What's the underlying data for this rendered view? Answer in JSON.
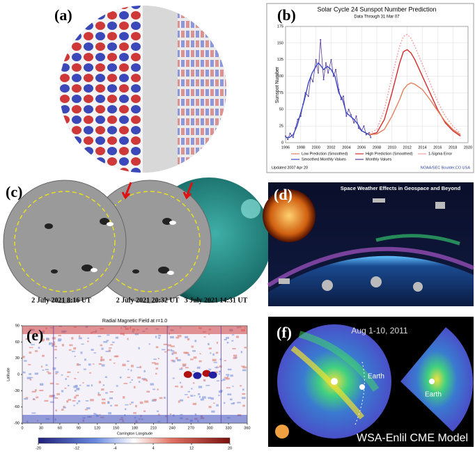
{
  "labels": [
    "(a)",
    "(b)",
    "(c)",
    "(d)",
    "(e)",
    "(f)"
  ],
  "panel_c": {
    "timestamps": [
      "2 July 2021 8:16 UT",
      "2 July 2021 20:32 UT",
      "3 July 2021 14:31 UT"
    ]
  },
  "panel_d": {
    "title": "Space Weather Effects in Geospace and Beyond"
  },
  "panel_f": {
    "title": "Aug 1-10, 2011",
    "footer": "WSA-Enlil CME Model",
    "earth_labels": [
      "Earth",
      "Earth"
    ]
  },
  "chart_data": [
    {
      "type": "line",
      "title": "Solar Cycle 24 Sunspot Number Prediction",
      "subtitle": "Data Through 31 Mar 07",
      "ylabel": "Sunspot Number",
      "xlim": [
        1996,
        2020
      ],
      "xticks": [
        1996,
        1998,
        2000,
        2002,
        2004,
        2006,
        2008,
        2010,
        2012,
        2014,
        2016,
        2018,
        2020
      ],
      "ylim": [
        0,
        175
      ],
      "yticks": [
        0,
        25,
        50,
        75,
        100,
        125,
        150,
        175
      ],
      "grid": true,
      "series": [
        {
          "name": "Monthly Values",
          "color": "#5a3c9a",
          "x": [
            1996,
            1996.3,
            1996.6,
            1997,
            1997.3,
            1997.6,
            1998,
            1998.3,
            1998.6,
            1999,
            1999.3,
            1999.6,
            2000,
            2000.3,
            2000.6,
            2001,
            2001.3,
            2001.6,
            2002,
            2002.3,
            2002.6,
            2003,
            2003.3,
            2003.6,
            2004,
            2004.3,
            2004.6,
            2005,
            2005.3,
            2005.6,
            2006,
            2006.3,
            2006.6,
            2007,
            2007.2
          ],
          "values": [
            10,
            5,
            14,
            8,
            22,
            35,
            40,
            58,
            75,
            70,
            98,
            92,
            125,
            105,
            155,
            95,
            120,
            105,
            125,
            100,
            110,
            80,
            65,
            70,
            40,
            50,
            42,
            30,
            40,
            22,
            18,
            25,
            12,
            15,
            8
          ]
        },
        {
          "name": "Smoothed Monthly Values",
          "color": "#3a48c0",
          "x": [
            1996,
            1996.5,
            1997,
            1997.5,
            1998,
            1998.5,
            1999,
            1999.5,
            2000,
            2000.3,
            2000.5,
            2001,
            2001.5,
            2002,
            2002.5,
            2003,
            2003.5,
            2004,
            2004.5,
            2005,
            2005.5,
            2006,
            2006.5,
            2007,
            2007.2
          ],
          "values": [
            8,
            8,
            12,
            25,
            45,
            65,
            90,
            105,
            115,
            120,
            118,
            110,
            115,
            110,
            100,
            75,
            65,
            45,
            40,
            35,
            28,
            18,
            15,
            12,
            10
          ]
        },
        {
          "name": "High Prediction (Smoothed)",
          "color": "#d42a2a",
          "x": [
            2007,
            2008,
            2009,
            2010,
            2011,
            2011.5,
            2012,
            2012.5,
            2013,
            2014,
            2015,
            2016,
            2017,
            2018,
            2019
          ],
          "values": [
            12,
            15,
            35,
            75,
            120,
            137,
            140,
            135,
            125,
            100,
            75,
            50,
            30,
            18,
            10
          ]
        },
        {
          "name": "Low Prediction (Smoothed)",
          "color": "#e0805a",
          "x": [
            2007,
            2008,
            2009,
            2010,
            2011,
            2011.5,
            2012,
            2012.5,
            2013,
            2014,
            2015,
            2016,
            2017,
            2018,
            2019
          ],
          "values": [
            12,
            13,
            20,
            40,
            65,
            80,
            87,
            90,
            88,
            80,
            65,
            48,
            32,
            20,
            12
          ]
        },
        {
          "name": "1-Sigma Error",
          "color": "#f2a0a0",
          "x": [
            2007,
            2008,
            2009,
            2010,
            2011,
            2011.5,
            2012,
            2012.5,
            2013,
            2014,
            2015,
            2016,
            2017,
            2018,
            2019
          ],
          "values": [
            14,
            20,
            50,
            100,
            145,
            160,
            163,
            157,
            145,
            118,
            90,
            62,
            40,
            25,
            14
          ]
        }
      ],
      "footer_left": "Updated 2007 Apr 20",
      "footer_right": "NOAA/SEC Boulder,CO USA"
    },
    {
      "type": "heatmap",
      "title": "Radial Magnetic Field at r=1.0",
      "xlabel": "Carrington Longitude",
      "ylabel": "Latitude",
      "xlim": [
        0,
        360
      ],
      "xticks": [
        0,
        30,
        60,
        90,
        120,
        150,
        180,
        210,
        240,
        270,
        300,
        330,
        360
      ],
      "ylim": [
        -90,
        90
      ],
      "yticks": [
        -90,
        -60,
        -30,
        0,
        30,
        60,
        90
      ],
      "clim": [
        -20,
        20
      ],
      "cticks": [
        -20,
        -12,
        -4,
        4,
        12,
        20
      ]
    }
  ]
}
